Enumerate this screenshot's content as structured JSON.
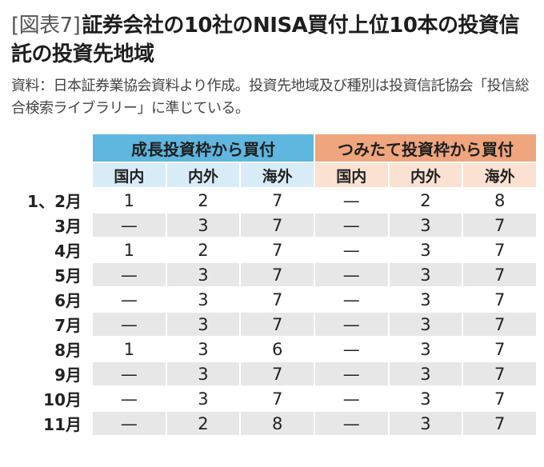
{
  "title": {
    "figure_label": "[図表7]",
    "text": "証券会社の10社のNISA買付上位10本の投資信託の投資先地域"
  },
  "source_note": "資料：日本証券業協会資料より作成。投資先地域及び種別は投資信託協会「投信総合検索ライブラリー」に準じている。",
  "chart_data": {
    "type": "table",
    "groups": [
      {
        "label": "成長投資枠から買付",
        "columns": [
          "国内",
          "内外",
          "海外"
        ]
      },
      {
        "label": "つみたて投資枠から買付",
        "columns": [
          "国内",
          "内外",
          "海外"
        ]
      }
    ],
    "rows": [
      {
        "label": "1、2月",
        "values": [
          "1",
          "2",
          "7",
          "—",
          "2",
          "8"
        ]
      },
      {
        "label": "3月",
        "values": [
          "—",
          "3",
          "7",
          "—",
          "3",
          "7"
        ]
      },
      {
        "label": "4月",
        "values": [
          "1",
          "2",
          "7",
          "—",
          "3",
          "7"
        ]
      },
      {
        "label": "5月",
        "values": [
          "—",
          "3",
          "7",
          "—",
          "3",
          "7"
        ]
      },
      {
        "label": "6月",
        "values": [
          "—",
          "3",
          "7",
          "—",
          "3",
          "7"
        ]
      },
      {
        "label": "7月",
        "values": [
          "—",
          "3",
          "7",
          "—",
          "3",
          "7"
        ]
      },
      {
        "label": "8月",
        "values": [
          "1",
          "3",
          "6",
          "—",
          "3",
          "7"
        ]
      },
      {
        "label": "9月",
        "values": [
          "—",
          "3",
          "7",
          "—",
          "3",
          "7"
        ]
      },
      {
        "label": "10月",
        "values": [
          "—",
          "3",
          "7",
          "—",
          "3",
          "7"
        ]
      },
      {
        "label": "11月",
        "values": [
          "—",
          "2",
          "8",
          "—",
          "3",
          "7"
        ]
      }
    ],
    "colors": {
      "group1_header": "#5fb6df",
      "group1_sub": "#d8ecf8",
      "group2_header": "#efa57e",
      "group2_sub": "#fbe1d2",
      "stripe": "#e7e7e7"
    }
  }
}
